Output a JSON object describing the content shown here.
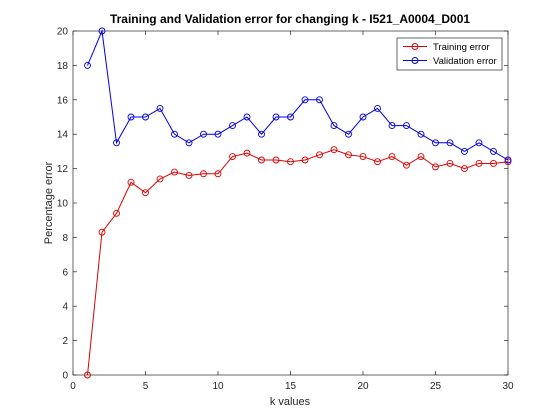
{
  "chart_data": {
    "type": "line",
    "title": "Training and Validation error for changing k - I521_A0004_D001",
    "xlabel": "k values",
    "ylabel": "Percentage error",
    "xlim": [
      0,
      30
    ],
    "ylim": [
      0,
      20
    ],
    "xticks": [
      0,
      5,
      10,
      15,
      20,
      25,
      30
    ],
    "yticks": [
      0,
      2,
      4,
      6,
      8,
      10,
      12,
      14,
      16,
      18,
      20
    ],
    "grid": false,
    "legend_position": "top-right",
    "x": [
      1,
      2,
      3,
      4,
      5,
      6,
      7,
      8,
      9,
      10,
      11,
      12,
      13,
      14,
      15,
      16,
      17,
      18,
      19,
      20,
      21,
      22,
      23,
      24,
      25,
      26,
      27,
      28,
      29,
      30
    ],
    "series": [
      {
        "name": "Training error",
        "color": "#e00000",
        "marker": "circle",
        "values": [
          0,
          8.3,
          9.4,
          11.2,
          10.6,
          11.4,
          11.8,
          11.6,
          11.7,
          11.7,
          12.7,
          12.9,
          12.5,
          12.5,
          12.4,
          12.5,
          12.8,
          13.1,
          12.8,
          12.7,
          12.4,
          12.7,
          12.2,
          12.7,
          12.1,
          12.3,
          12.0,
          12.3,
          12.3,
          12.4
        ]
      },
      {
        "name": "Validation error",
        "color": "#0000e0",
        "marker": "circle",
        "values": [
          18,
          20,
          13.5,
          15,
          15,
          15.5,
          14,
          13.5,
          14,
          14,
          14.5,
          15,
          14,
          15,
          15,
          16,
          16,
          14.5,
          14,
          15,
          15.5,
          14.5,
          14.5,
          14,
          13.5,
          13.5,
          13,
          13.5,
          13,
          12.5
        ]
      }
    ]
  }
}
